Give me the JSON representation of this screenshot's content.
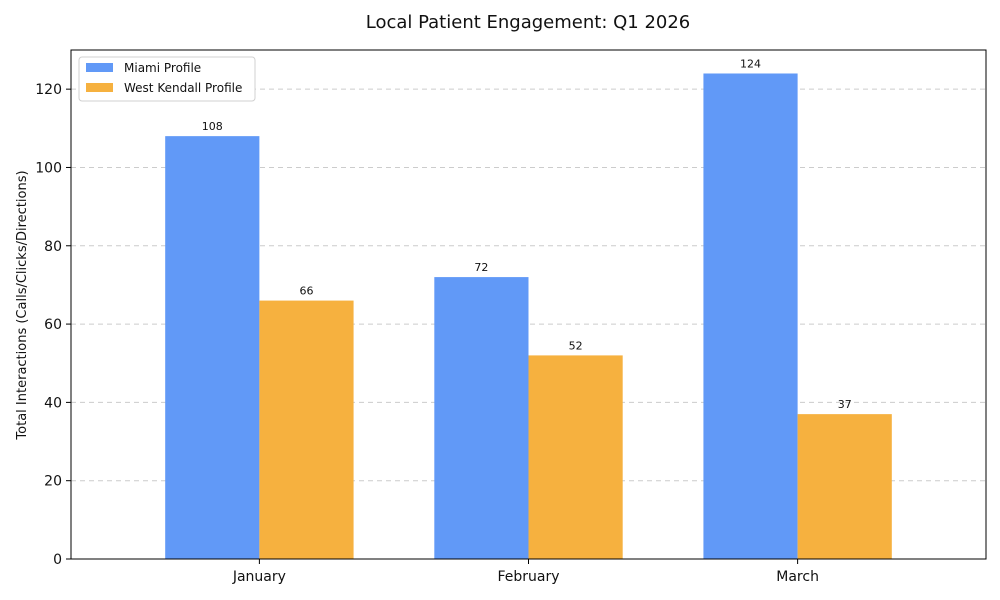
{
  "chart_data": {
    "type": "bar",
    "title": "Local Patient Engagement: Q1 2026",
    "xlabel": "",
    "ylabel": "Total Interactions (Calls/Clicks/Directions)",
    "categories": [
      "January",
      "February",
      "March"
    ],
    "series": [
      {
        "name": "Miami Profile",
        "values": [
          108,
          72,
          124
        ],
        "color": "#6199f7"
      },
      {
        "name": "West Kendall Profile",
        "values": [
          66,
          52,
          37
        ],
        "color": "#f6b13f"
      }
    ],
    "ylim": [
      0,
      130
    ],
    "yticks": [
      0,
      20,
      40,
      60,
      80,
      100,
      120
    ],
    "grid": "y-dashed",
    "legend_position": "top-left"
  }
}
